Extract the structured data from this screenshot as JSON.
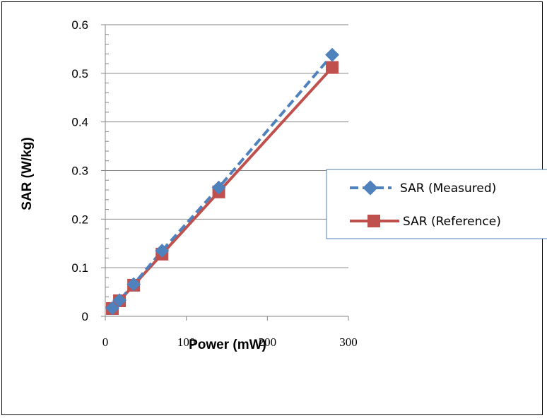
{
  "chart_data": {
    "type": "line",
    "title": "",
    "xlabel": "Power (mW)",
    "ylabel": "SAR (W/kg)",
    "xlim": [
      0,
      300
    ],
    "ylim": [
      0,
      0.6
    ],
    "xticks": [
      "0",
      "100",
      "200",
      "300"
    ],
    "yticks": [
      "0",
      "0.1",
      "0.2",
      "0.3",
      "0.4",
      "0.5",
      "0.6"
    ],
    "grid": "horizontal",
    "legend_position": "right",
    "series": [
      {
        "name": "SAR (Measured)",
        "color": "#4f81bd",
        "line_style": "dashed",
        "marker": "diamond",
        "x": [
          8.75,
          17.5,
          35,
          70,
          140,
          280
        ],
        "y": [
          0.017,
          0.033,
          0.066,
          0.135,
          0.265,
          0.538
        ]
      },
      {
        "name": "SAR (Reference)",
        "color": "#c0504d",
        "line_style": "solid",
        "marker": "square",
        "x": [
          8.75,
          17.5,
          35,
          70,
          140,
          280
        ],
        "y": [
          0.016,
          0.032,
          0.064,
          0.128,
          0.256,
          0.512
        ]
      }
    ]
  }
}
